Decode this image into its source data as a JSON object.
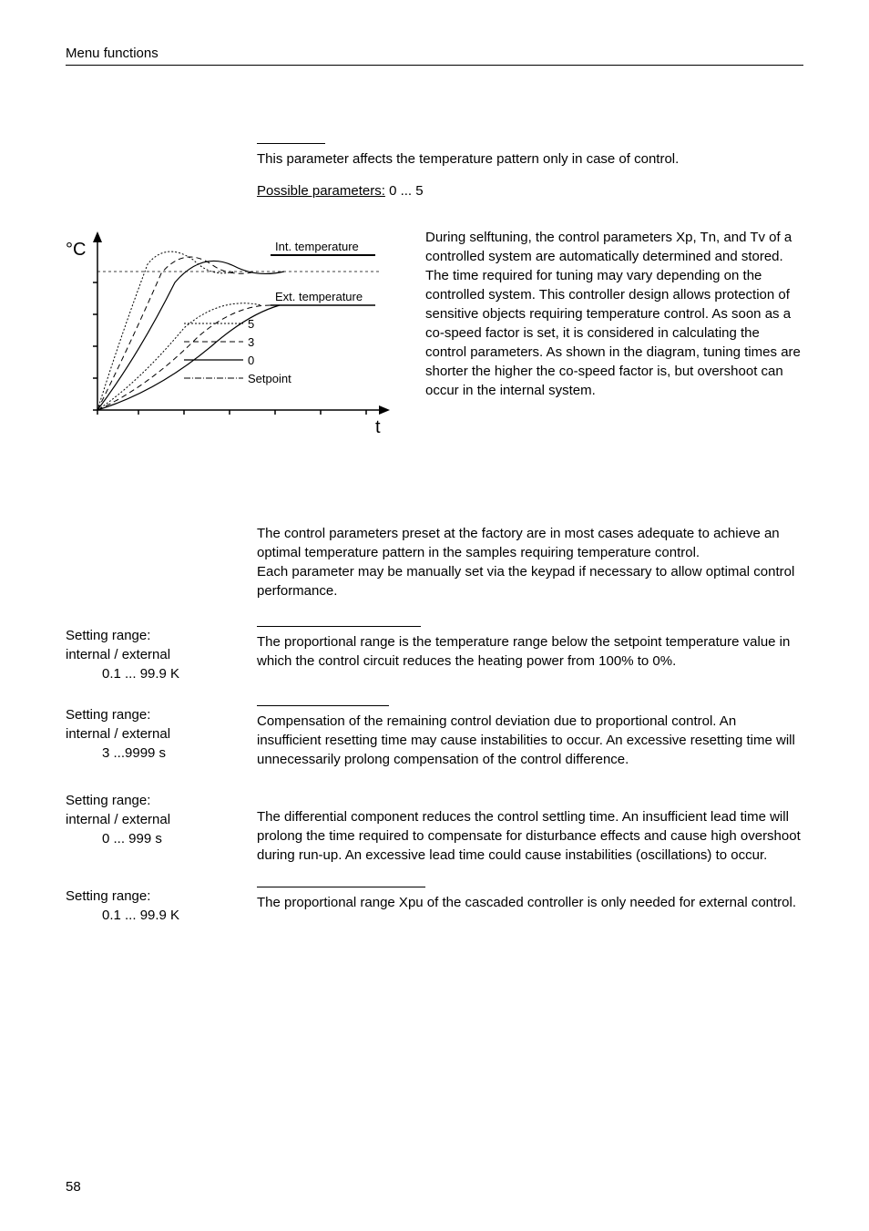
{
  "header": "Menu functions",
  "intro": {
    "text": "This parameter affects the temperature pattern only in case of control.",
    "possibleParamsLabel": "Possible parameters:",
    "possibleParamsValue": "  0 ... 5"
  },
  "chart": {
    "yAxisLabel": "°C",
    "xAxisLabel": "t",
    "labels": {
      "intTemp": "Int. temperature",
      "extTemp": "Ext. temperature",
      "line5": "5",
      "line3": "3",
      "line0": "0",
      "setpoint": "Setpoint"
    },
    "bgColor": "#ffffff",
    "lineColor": "#000000"
  },
  "chartText": "During selftuning, the control parameters Xp, Tn, and Tv of a controlled system are automatically determined and stored. The time required for tuning may vary depending on the controlled system. This controller design allows protection of sensitive objects requiring temperature control. As soon as a co-speed factor is set, it is considered in calculating the control parameters. As shown in the diagram, tuning times are shorter the higher the co-speed factor is, but overshoot can occur in the internal system.",
  "paramsIntro": "The control parameters preset at the factory are in most cases adequate to achieve an optimal temperature pattern in the samples requiring temperature control.\nEach parameter may be manually set via the keypad if necessary to allow optimal control performance.",
  "params": [
    {
      "labelLine1": "Setting range:",
      "labelLine2": "internal / external",
      "labelLine3": "0.1 ... 99.9 K",
      "dividerWidth": "180px",
      "text": "The proportional range is the temperature range below the setpoint temperature value in which the control circuit reduces the heating power from 100% to 0%."
    },
    {
      "labelLine1": "Setting range:",
      "labelLine2": "internal / external",
      "labelLine3": "3 ...9999 s",
      "dividerWidth": "145px",
      "text": "Compensation of the remaining control deviation due to proportional control. An insufficient resetting time may cause instabilities to occur. An excessive resetting time will unnecessarily prolong compensation of the control difference."
    },
    {
      "labelLine1": "Setting range:",
      "labelLine2": "internal / external",
      "labelLine3": "0 ... 999 s",
      "dividerWidth": "0px",
      "text": "The differential component reduces the control settling time. An insufficient lead time will prolong the time required to compensate for disturbance effects and cause high overshoot during run-up. An excessive lead time could cause instabilities (oscillations) to occur."
    },
    {
      "labelLine1": "Setting range:",
      "labelLine2": "",
      "labelLine3": "0.1 ... 99.9 K",
      "dividerWidth": "185px",
      "text": "The proportional range Xpu of the cascaded controller is only needed for external control."
    }
  ],
  "pageNum": "58"
}
